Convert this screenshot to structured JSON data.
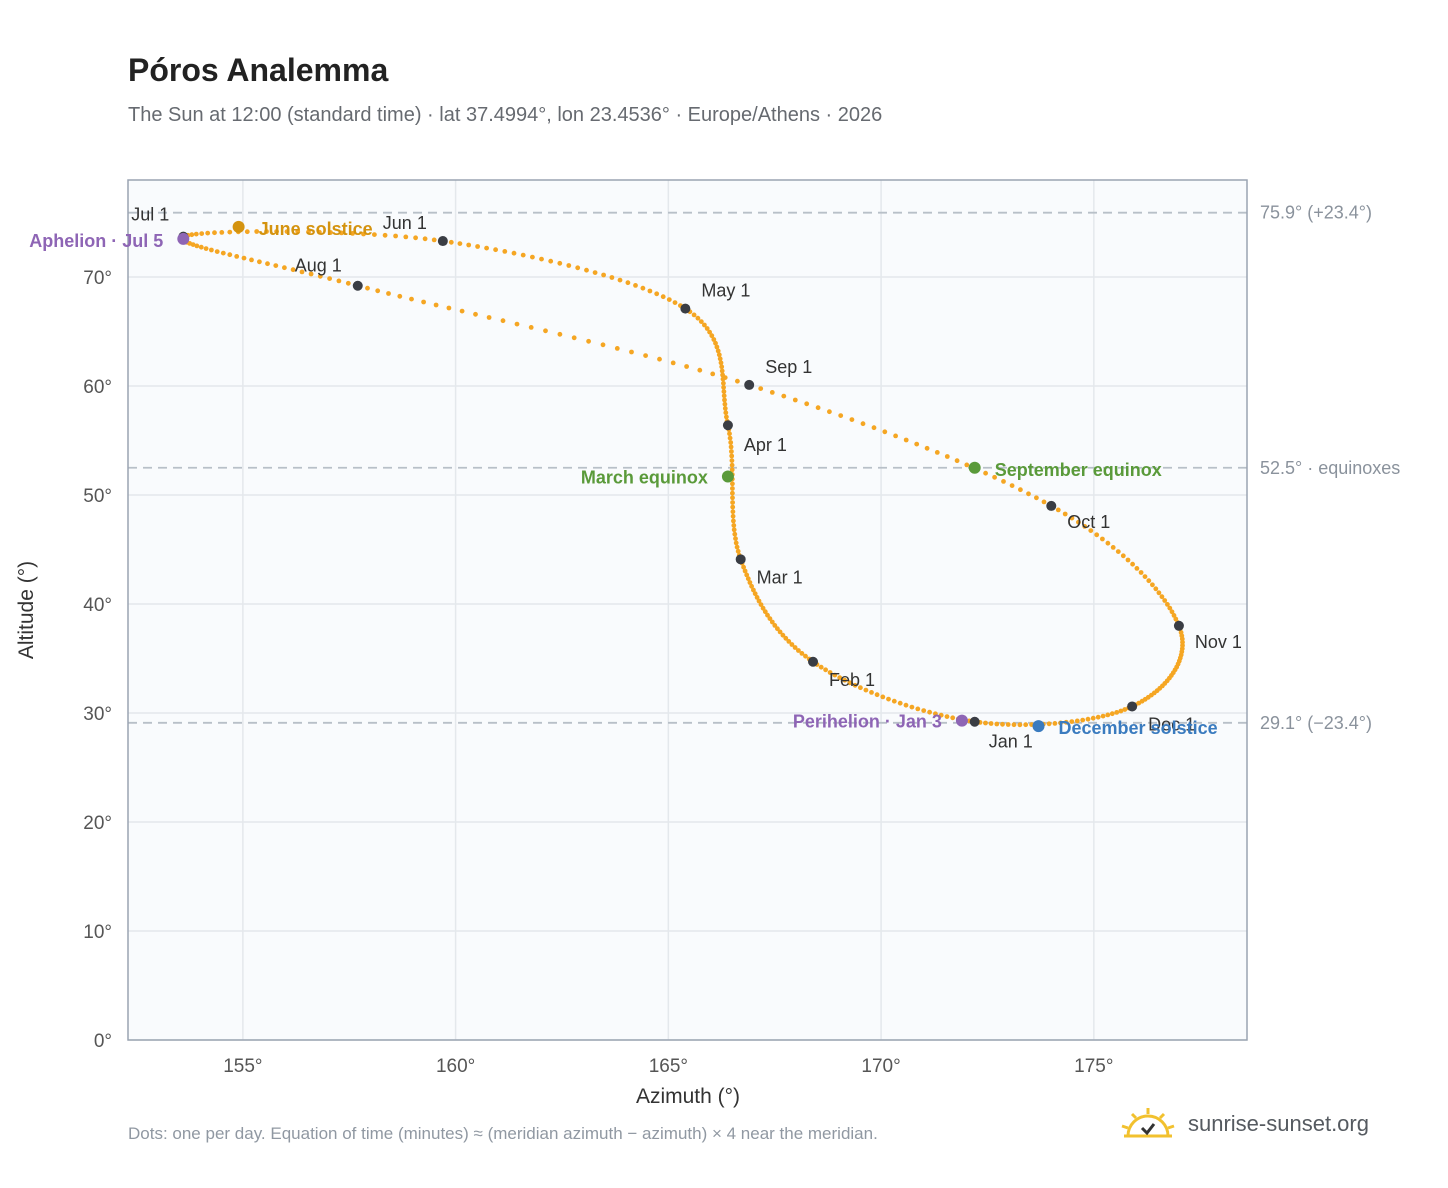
{
  "header": {
    "title": "Póros Analemma",
    "subtitle": "The Sun at 12:00 (standard time) · lat 37.4994°, lon 23.4536° · Europe/Athens · 2026"
  },
  "footer": {
    "note": "Dots: one per day. Equation of time (minutes) ≈ (meridian azimuth − azimuth) × 4 near the meridian.",
    "brand": "sunrise-sunset.org"
  },
  "colors": {
    "curve": "#f5a623",
    "month_marker": "#3a3d44",
    "june_solstice": "#d4930f",
    "december_solstice": "#3a7bbf",
    "equinox": "#5a9a3a",
    "apsis": "#8e65b5",
    "reference_line": "#b8c0c8",
    "plot_bg": "#f9fbfd",
    "grid": "#e4e8ec"
  },
  "chart_data": {
    "type": "scatter",
    "xlabel": "Azimuth (°)",
    "ylabel": "Altitude (°)",
    "xlim": [
      152.3,
      178.6
    ],
    "ylim": [
      0,
      78.9
    ],
    "xticks": [
      155,
      160,
      165,
      170,
      175
    ],
    "yticks": [
      0,
      10,
      20,
      30,
      40,
      50,
      60,
      70
    ],
    "tick_suffix": "°",
    "grid": true,
    "monthly_points": [
      {
        "label": "Jan 1",
        "az": 172.2,
        "alt": 29.2
      },
      {
        "label": "Feb 1",
        "az": 168.4,
        "alt": 34.7
      },
      {
        "label": "Mar 1",
        "az": 166.7,
        "alt": 44.1
      },
      {
        "label": "Apr 1",
        "az": 166.4,
        "alt": 56.4
      },
      {
        "label": "May 1",
        "az": 165.4,
        "alt": 67.1
      },
      {
        "label": "Jun 1",
        "az": 159.7,
        "alt": 73.3
      },
      {
        "label": "Jul 1",
        "az": 153.6,
        "alt": 73.7
      },
      {
        "label": "Aug 1",
        "az": 157.7,
        "alt": 69.2
      },
      {
        "label": "Sep 1",
        "az": 166.9,
        "alt": 60.1
      },
      {
        "label": "Oct 1",
        "az": 174.0,
        "alt": 49.0
      },
      {
        "label": "Nov 1",
        "az": 177.0,
        "alt": 38.0
      },
      {
        "label": "Dec 1",
        "az": 175.9,
        "alt": 30.6
      }
    ],
    "events": [
      {
        "label": "June solstice",
        "az": 154.9,
        "alt": 74.6,
        "kind": "june_solstice"
      },
      {
        "label": "December solstice",
        "az": 173.7,
        "alt": 28.8,
        "kind": "december_solstice"
      },
      {
        "label": "March equinox",
        "az": 166.4,
        "alt": 51.7,
        "kind": "equinox"
      },
      {
        "label": "September equinox",
        "az": 172.2,
        "alt": 52.5,
        "kind": "equinox"
      },
      {
        "label": "Aphelion · Jul 5",
        "az": 153.6,
        "alt": 73.5,
        "kind": "apsis"
      },
      {
        "label": "Perihelion · Jan 3",
        "az": 171.9,
        "alt": 29.3,
        "kind": "apsis"
      }
    ],
    "reference_lines": [
      {
        "alt": 75.9,
        "label": "75.9° (+23.4°)"
      },
      {
        "alt": 52.5,
        "label": "52.5° · equinoxes"
      },
      {
        "alt": 29.1,
        "label": "29.1° (−23.4°)"
      }
    ]
  }
}
